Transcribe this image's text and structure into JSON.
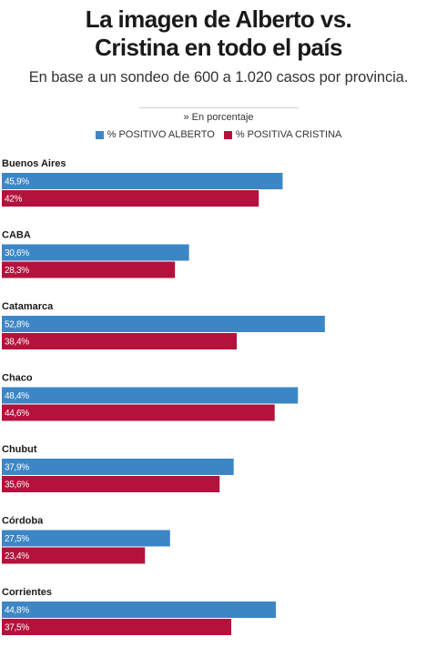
{
  "title_line1": "La imagen de Alberto vs.",
  "title_line2": "Cristina en todo el país",
  "subtitle": "En base a un sondeo de 600 a 1.020 casos por provincia.",
  "unit_note": "» En porcentaje",
  "colors": {
    "alberto": "#3d86c6",
    "cristina": "#b4123c"
  },
  "chart_data": {
    "type": "bar",
    "orientation": "horizontal",
    "categories": [
      "Buenos Aires",
      "CABA",
      "Catamarca",
      "Chaco",
      "Chubut",
      "Córdoba",
      "Corrientes"
    ],
    "series": [
      {
        "name": "% POSITIVO ALBERTO",
        "values": [
          45.9,
          30.6,
          52.8,
          48.4,
          37.9,
          27.5,
          44.8
        ],
        "labels": [
          "45,9%",
          "30,6%",
          "52,8%",
          "48,4%",
          "37,9%",
          "27,5%",
          "44,8%"
        ]
      },
      {
        "name": "% POSITIVA CRISTINA",
        "values": [
          42,
          28.3,
          38.4,
          44.6,
          35.6,
          23.4,
          37.5
        ],
        "labels": [
          "42%",
          "28,3%",
          "38,4%",
          "44,6%",
          "35,6%",
          "23,4%",
          "37,5%"
        ]
      }
    ]
  }
}
